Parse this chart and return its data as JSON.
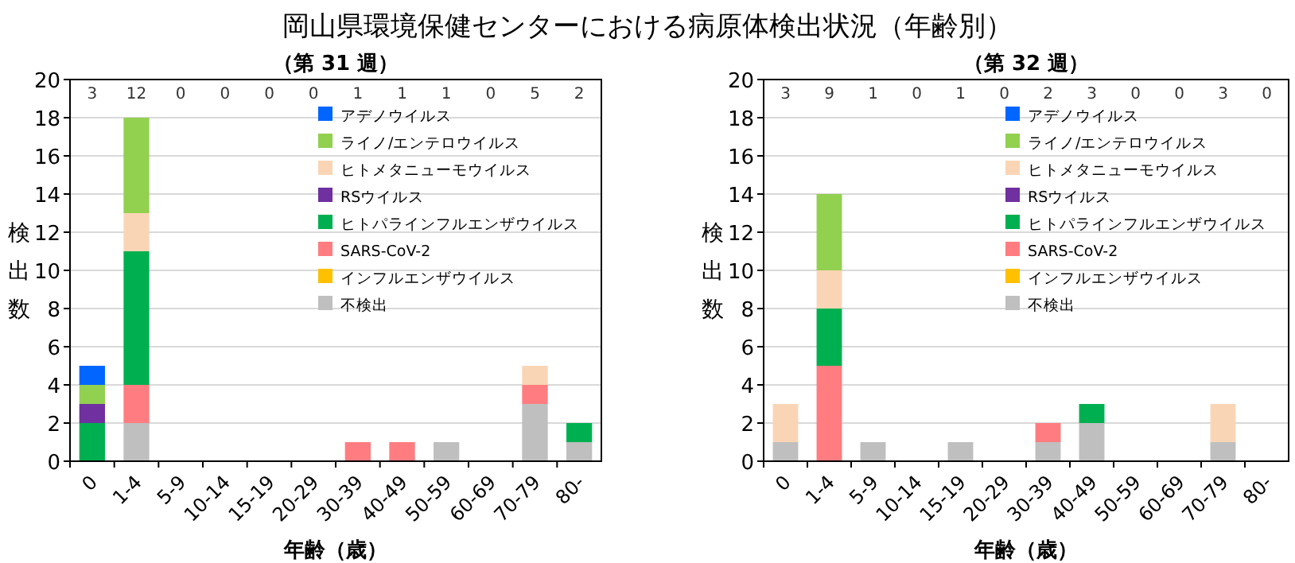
{
  "chart_data": [
    {
      "type": "bar",
      "stacked": true,
      "title": "岡山県環境保健センターにおける病原体検出状況（年齢別）",
      "subtitle": "（第 31 週）",
      "xlabel": "年齢（歳）",
      "ylabel": "検出数",
      "categories": [
        "0",
        "1-4",
        "5-9",
        "10-14",
        "15-19",
        "20-29",
        "30-39",
        "40-49",
        "50-59",
        "60-69",
        "70-79",
        "80-"
      ],
      "ylim": [
        0,
        20
      ],
      "yticks": [
        0,
        2,
        4,
        6,
        8,
        10,
        12,
        14,
        16,
        18,
        20
      ],
      "grid": "y",
      "legend": "top right",
      "series": [
        {
          "name": "不検出",
          "color": "#bfbfbf",
          "values": [
            0,
            2,
            0,
            0,
            0,
            0,
            0,
            0,
            1,
            0,
            3,
            1
          ]
        },
        {
          "name": "インフルエンザウイルス",
          "color": "#ffc000",
          "values": [
            0,
            0,
            0,
            0,
            0,
            0,
            0,
            0,
            0,
            0,
            0,
            0
          ]
        },
        {
          "name": "SARS-CoV-2",
          "color": "#ff7c80",
          "values": [
            0,
            2,
            0,
            0,
            0,
            0,
            1,
            1,
            0,
            0,
            1,
            0
          ]
        },
        {
          "name": "ヒトパラインフルエンザウイルス",
          "color": "#00b050",
          "values": [
            2,
            7,
            0,
            0,
            0,
            0,
            0,
            0,
            0,
            0,
            0,
            1
          ]
        },
        {
          "name": "RSウイルス",
          "color": "#7030a0",
          "values": [
            1,
            0,
            0,
            0,
            0,
            0,
            0,
            0,
            0,
            0,
            0,
            0
          ]
        },
        {
          "name": "ヒトメタニューモウイルス",
          "color": "#fad5b5",
          "values": [
            0,
            2,
            0,
            0,
            0,
            0,
            0,
            0,
            0,
            0,
            1,
            0
          ]
        },
        {
          "name": "ライノ/エンテロウイルス",
          "color": "#92d050",
          "values": [
            1,
            5,
            0,
            0,
            0,
            0,
            0,
            0,
            0,
            0,
            0,
            0
          ]
        },
        {
          "name": "アデノウイルス",
          "color": "#0066ff",
          "values": [
            1,
            0,
            0,
            0,
            0,
            0,
            0,
            0,
            0,
            0,
            0,
            0
          ]
        }
      ],
      "annotations": [
        "3",
        "12",
        "0",
        "0",
        "0",
        "0",
        "1",
        "1",
        "1",
        "0",
        "5",
        "2"
      ]
    },
    {
      "type": "bar",
      "stacked": true,
      "subtitle": "（第 32 週）",
      "xlabel": "年齢（歳）",
      "ylabel": "検出数",
      "categories": [
        "0",
        "1-4",
        "5-9",
        "10-14",
        "15-19",
        "20-29",
        "30-39",
        "40-49",
        "50-59",
        "60-69",
        "70-79",
        "80-"
      ],
      "ylim": [
        0,
        20
      ],
      "yticks": [
        0,
        2,
        4,
        6,
        8,
        10,
        12,
        14,
        16,
        18,
        20
      ],
      "grid": "y",
      "legend": "top right",
      "series": [
        {
          "name": "不検出",
          "color": "#bfbfbf",
          "values": [
            1,
            0,
            1,
            0,
            1,
            0,
            1,
            2,
            0,
            0,
            1,
            0
          ]
        },
        {
          "name": "インフルエンザウイルス",
          "color": "#ffc000",
          "values": [
            0,
            0,
            0,
            0,
            0,
            0,
            0,
            0,
            0,
            0,
            0,
            0
          ]
        },
        {
          "name": "SARS-CoV-2",
          "color": "#ff7c80",
          "values": [
            0,
            5,
            0,
            0,
            0,
            0,
            1,
            0,
            0,
            0,
            0,
            0
          ]
        },
        {
          "name": "ヒトパラインフルエンザウイルス",
          "color": "#00b050",
          "values": [
            0,
            3,
            0,
            0,
            0,
            0,
            0,
            1,
            0,
            0,
            0,
            0
          ]
        },
        {
          "name": "RSウイルス",
          "color": "#7030a0",
          "values": [
            0,
            0,
            0,
            0,
            0,
            0,
            0,
            0,
            0,
            0,
            0,
            0
          ]
        },
        {
          "name": "ヒトメタニューモウイルス",
          "color": "#fad5b5",
          "values": [
            2,
            2,
            0,
            0,
            0,
            0,
            0,
            0,
            0,
            0,
            2,
            0
          ]
        },
        {
          "name": "ライノ/エンテロウイルス",
          "color": "#92d050",
          "values": [
            0,
            4,
            0,
            0,
            0,
            0,
            0,
            0,
            0,
            0,
            0,
            0
          ]
        },
        {
          "name": "アデノウイルス",
          "color": "#0066ff",
          "values": [
            0,
            0,
            0,
            0,
            0,
            0,
            0,
            0,
            0,
            0,
            0,
            0
          ]
        }
      ],
      "annotations": [
        "3",
        "9",
        "1",
        "0",
        "1",
        "0",
        "2",
        "3",
        "0",
        "0",
        "3",
        "0"
      ]
    }
  ]
}
